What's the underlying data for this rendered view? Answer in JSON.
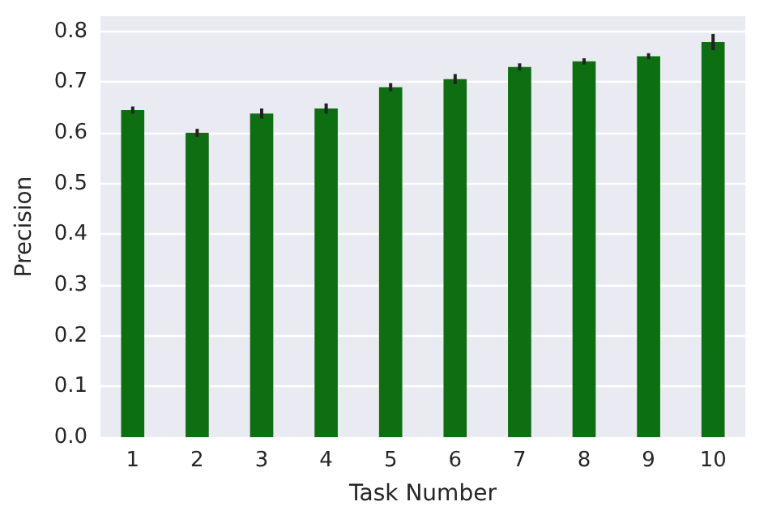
{
  "chart_data": {
    "type": "bar",
    "xlabel": "Task Number",
    "ylabel": "Precision",
    "categories": [
      "1",
      "2",
      "3",
      "4",
      "5",
      "6",
      "7",
      "8",
      "9",
      "10"
    ],
    "values": [
      0.645,
      0.6,
      0.638,
      0.648,
      0.69,
      0.706,
      0.73,
      0.741,
      0.751,
      0.779
    ],
    "errors": [
      0.007,
      0.008,
      0.01,
      0.01,
      0.008,
      0.01,
      0.007,
      0.006,
      0.006,
      0.016
    ],
    "color": "#0e6e12",
    "ylim": [
      0,
      0.83
    ],
    "yticks": [
      {
        "value": 0,
        "label": "0.0"
      },
      0.1,
      0.2,
      0.3,
      0.4,
      0.5,
      0.6,
      0.7,
      0.8
    ],
    "grid": "y"
  }
}
